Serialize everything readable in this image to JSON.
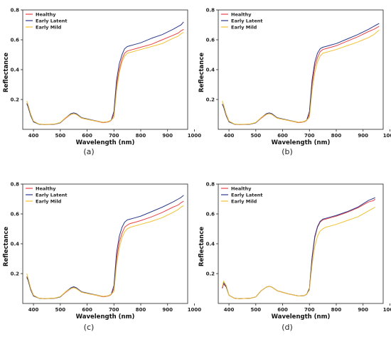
{
  "chart_data": [
    {
      "type": "line",
      "caption": "(a)",
      "xlabel": "Wavelength (nm)",
      "ylabel": "Reflectance",
      "xlim": [
        360,
        975
      ],
      "ylim": [
        0,
        0.8
      ],
      "xticks": [
        400,
        500,
        600,
        700,
        800,
        900,
        1000
      ],
      "yticks": [
        0.2,
        0.4,
        0.6,
        0.8
      ],
      "ytick_labels": [
        "0.2",
        "0.4",
        "0.6",
        "0.8"
      ],
      "legend_position": "top-left",
      "series": [
        {
          "name": "Healthy",
          "color": "#e8434a",
          "x": [
            375,
            380,
            390,
            400,
            420,
            440,
            480,
            500,
            520,
            540,
            550,
            560,
            580,
            620,
            660,
            680,
            690,
            700,
            710,
            720,
            730,
            740,
            750,
            760,
            780,
            800,
            840,
            880,
            920,
            940,
            950,
            960
          ],
          "y": [
            0.165,
            0.16,
            0.1,
            0.055,
            0.035,
            0.032,
            0.035,
            0.044,
            0.075,
            0.1,
            0.105,
            0.1,
            0.075,
            0.06,
            0.045,
            0.05,
            0.06,
            0.1,
            0.3,
            0.4,
            0.47,
            0.51,
            0.525,
            0.53,
            0.54,
            0.55,
            0.57,
            0.6,
            0.63,
            0.645,
            0.66,
            0.67
          ]
        },
        {
          "name": "Early Latent",
          "color": "#2b3a8c",
          "x": [
            375,
            380,
            390,
            400,
            420,
            440,
            480,
            500,
            520,
            540,
            550,
            560,
            580,
            620,
            660,
            680,
            690,
            700,
            710,
            720,
            730,
            740,
            750,
            760,
            780,
            800,
            840,
            880,
            920,
            940,
            950,
            960
          ],
          "y": [
            0.175,
            0.15,
            0.09,
            0.05,
            0.035,
            0.032,
            0.035,
            0.044,
            0.078,
            0.105,
            0.11,
            0.105,
            0.078,
            0.062,
            0.047,
            0.052,
            0.062,
            0.12,
            0.33,
            0.44,
            0.5,
            0.54,
            0.555,
            0.56,
            0.57,
            0.58,
            0.61,
            0.635,
            0.67,
            0.69,
            0.7,
            0.72
          ]
        },
        {
          "name": "Early Mild",
          "color": "#f2c12e",
          "x": [
            375,
            380,
            390,
            400,
            420,
            440,
            480,
            500,
            520,
            540,
            550,
            560,
            580,
            620,
            660,
            680,
            690,
            700,
            710,
            720,
            730,
            740,
            750,
            760,
            780,
            800,
            840,
            880,
            920,
            940,
            950,
            960
          ],
          "y": [
            0.19,
            0.165,
            0.1,
            0.055,
            0.036,
            0.033,
            0.036,
            0.046,
            0.078,
            0.1,
            0.105,
            0.1,
            0.075,
            0.06,
            0.047,
            0.052,
            0.062,
            0.08,
            0.26,
            0.38,
            0.45,
            0.49,
            0.51,
            0.515,
            0.525,
            0.535,
            0.555,
            0.575,
            0.61,
            0.625,
            0.64,
            0.65
          ]
        }
      ]
    },
    {
      "type": "line",
      "caption": "(b)",
      "xlabel": "Wavelength (nm)",
      "ylabel": "Reflectance",
      "xlim": [
        360,
        975
      ],
      "ylim": [
        0,
        0.8
      ],
      "xticks": [
        400,
        500,
        600,
        700,
        800,
        900,
        1000
      ],
      "yticks": [
        0.2,
        0.4,
        0.6,
        0.8
      ],
      "ytick_labels": [
        "0.2",
        "0.4",
        "0.6",
        "0.8"
      ],
      "legend_position": "top-left",
      "series": [
        {
          "name": "Healthy",
          "color": "#e8434a",
          "x": [
            375,
            380,
            390,
            400,
            420,
            440,
            480,
            500,
            520,
            540,
            550,
            560,
            580,
            620,
            660,
            680,
            690,
            700,
            710,
            720,
            730,
            740,
            750,
            760,
            780,
            800,
            840,
            880,
            920,
            940,
            950,
            960
          ],
          "y": [
            0.165,
            0.155,
            0.1,
            0.055,
            0.035,
            0.032,
            0.035,
            0.044,
            0.075,
            0.1,
            0.105,
            0.1,
            0.075,
            0.06,
            0.045,
            0.05,
            0.06,
            0.1,
            0.3,
            0.42,
            0.48,
            0.52,
            0.535,
            0.54,
            0.55,
            0.56,
            0.59,
            0.62,
            0.655,
            0.67,
            0.68,
            0.69
          ]
        },
        {
          "name": "Early Latent",
          "color": "#2b3a8c",
          "x": [
            375,
            380,
            390,
            400,
            420,
            440,
            480,
            500,
            520,
            540,
            550,
            560,
            580,
            620,
            660,
            680,
            690,
            700,
            710,
            720,
            730,
            740,
            750,
            760,
            780,
            800,
            840,
            880,
            920,
            940,
            950,
            960
          ],
          "y": [
            0.17,
            0.15,
            0.09,
            0.05,
            0.035,
            0.032,
            0.035,
            0.044,
            0.078,
            0.105,
            0.11,
            0.105,
            0.078,
            0.062,
            0.047,
            0.052,
            0.062,
            0.12,
            0.33,
            0.45,
            0.51,
            0.54,
            0.55,
            0.555,
            0.565,
            0.575,
            0.605,
            0.635,
            0.67,
            0.69,
            0.7,
            0.71
          ]
        },
        {
          "name": "Early Mild",
          "color": "#f2c12e",
          "x": [
            375,
            380,
            390,
            400,
            420,
            440,
            480,
            500,
            520,
            540,
            550,
            560,
            580,
            620,
            660,
            680,
            690,
            700,
            710,
            720,
            730,
            740,
            750,
            760,
            780,
            800,
            840,
            880,
            920,
            940,
            950,
            960
          ],
          "y": [
            0.19,
            0.165,
            0.1,
            0.055,
            0.036,
            0.033,
            0.036,
            0.046,
            0.078,
            0.1,
            0.105,
            0.1,
            0.075,
            0.06,
            0.047,
            0.052,
            0.062,
            0.08,
            0.26,
            0.38,
            0.45,
            0.49,
            0.51,
            0.515,
            0.525,
            0.535,
            0.56,
            0.585,
            0.615,
            0.635,
            0.65,
            0.665
          ]
        }
      ]
    },
    {
      "type": "line",
      "caption": "(c)",
      "xlabel": "Wavelength (nm)",
      "ylabel": "Reflectance",
      "xlim": [
        360,
        975
      ],
      "ylim": [
        0,
        0.8
      ],
      "xticks": [
        400,
        500,
        600,
        700,
        800,
        900,
        1000
      ],
      "yticks": [
        0.2,
        0.4,
        0.6,
        0.8
      ],
      "ytick_labels": [
        "0.2",
        "0.4",
        "0.6",
        "0.8"
      ],
      "legend_position": "top-left",
      "series": [
        {
          "name": "Healthy",
          "color": "#e8434a",
          "x": [
            375,
            380,
            390,
            400,
            420,
            440,
            480,
            500,
            520,
            540,
            550,
            560,
            580,
            620,
            660,
            680,
            690,
            700,
            710,
            720,
            730,
            740,
            750,
            760,
            780,
            800,
            840,
            880,
            920,
            940,
            950,
            960
          ],
          "y": [
            0.17,
            0.16,
            0.1,
            0.055,
            0.035,
            0.032,
            0.035,
            0.044,
            0.075,
            0.1,
            0.108,
            0.1,
            0.075,
            0.06,
            0.045,
            0.05,
            0.06,
            0.1,
            0.3,
            0.41,
            0.47,
            0.51,
            0.525,
            0.535,
            0.545,
            0.555,
            0.58,
            0.61,
            0.645,
            0.66,
            0.675,
            0.685
          ]
        },
        {
          "name": "Early Latent",
          "color": "#2b3a8c",
          "x": [
            375,
            380,
            390,
            400,
            420,
            440,
            480,
            500,
            520,
            540,
            550,
            560,
            580,
            620,
            660,
            680,
            690,
            700,
            710,
            720,
            730,
            740,
            750,
            760,
            780,
            800,
            840,
            880,
            920,
            940,
            950,
            960
          ],
          "y": [
            0.18,
            0.155,
            0.09,
            0.05,
            0.035,
            0.032,
            0.035,
            0.044,
            0.078,
            0.105,
            0.112,
            0.105,
            0.078,
            0.062,
            0.047,
            0.052,
            0.062,
            0.12,
            0.34,
            0.45,
            0.51,
            0.545,
            0.56,
            0.565,
            0.575,
            0.585,
            0.615,
            0.645,
            0.68,
            0.7,
            0.71,
            0.725
          ]
        },
        {
          "name": "Early Mild",
          "color": "#f2c12e",
          "x": [
            375,
            380,
            390,
            400,
            420,
            440,
            480,
            500,
            520,
            540,
            550,
            560,
            580,
            620,
            660,
            680,
            690,
            700,
            710,
            720,
            730,
            740,
            750,
            760,
            780,
            800,
            840,
            880,
            920,
            940,
            950,
            960
          ],
          "y": [
            0.2,
            0.17,
            0.1,
            0.055,
            0.036,
            0.033,
            0.036,
            0.046,
            0.078,
            0.1,
            0.105,
            0.1,
            0.075,
            0.06,
            0.047,
            0.052,
            0.062,
            0.08,
            0.26,
            0.37,
            0.44,
            0.48,
            0.5,
            0.51,
            0.52,
            0.53,
            0.55,
            0.575,
            0.61,
            0.63,
            0.645,
            0.655
          ]
        }
      ]
    },
    {
      "type": "line",
      "caption": "(d)",
      "xlabel": "Wavelength (nm)",
      "ylabel": "Reflectance",
      "xlim": [
        360,
        975
      ],
      "ylim": [
        0,
        0.8
      ],
      "xticks": [
        400,
        500,
        600,
        700,
        800,
        900,
        1000
      ],
      "yticks": [
        0.2,
        0.4,
        0.6,
        0.8
      ],
      "ytick_labels": [
        "0.2",
        "0.4",
        "0.6",
        "0.8"
      ],
      "legend_position": "top-left",
      "series": [
        {
          "name": "Healthy",
          "color": "#e8434a",
          "x": [
            375,
            380,
            390,
            400,
            420,
            440,
            480,
            500,
            520,
            540,
            550,
            560,
            580,
            620,
            660,
            680,
            690,
            700,
            710,
            720,
            730,
            740,
            750,
            760,
            780,
            800,
            840,
            880,
            920,
            940,
            945
          ],
          "y": [
            0.1,
            0.13,
            0.11,
            0.055,
            0.035,
            0.032,
            0.035,
            0.044,
            0.085,
            0.11,
            0.115,
            0.11,
            0.085,
            0.065,
            0.05,
            0.052,
            0.062,
            0.1,
            0.3,
            0.44,
            0.51,
            0.545,
            0.56,
            0.565,
            0.575,
            0.585,
            0.61,
            0.64,
            0.68,
            0.69,
            0.7
          ]
        },
        {
          "name": "Early Latent",
          "color": "#2b3a8c",
          "x": [
            375,
            380,
            390,
            400,
            420,
            440,
            480,
            500,
            520,
            540,
            550,
            560,
            580,
            620,
            660,
            680,
            690,
            700,
            710,
            720,
            730,
            740,
            750,
            760,
            780,
            800,
            840,
            880,
            920,
            940,
            945
          ],
          "y": [
            0.105,
            0.14,
            0.11,
            0.055,
            0.035,
            0.032,
            0.035,
            0.044,
            0.085,
            0.11,
            0.115,
            0.11,
            0.085,
            0.065,
            0.05,
            0.052,
            0.062,
            0.1,
            0.31,
            0.45,
            0.515,
            0.55,
            0.565,
            0.57,
            0.58,
            0.59,
            0.615,
            0.645,
            0.69,
            0.705,
            0.71
          ]
        },
        {
          "name": "Early Mild",
          "color": "#f2c12e",
          "x": [
            375,
            380,
            390,
            400,
            420,
            440,
            480,
            500,
            520,
            540,
            550,
            560,
            580,
            620,
            660,
            680,
            690,
            700,
            710,
            720,
            730,
            740,
            750,
            760,
            780,
            800,
            840,
            880,
            920,
            940,
            945
          ],
          "y": [
            0.11,
            0.15,
            0.12,
            0.055,
            0.035,
            0.032,
            0.035,
            0.044,
            0.085,
            0.11,
            0.115,
            0.11,
            0.085,
            0.065,
            0.05,
            0.052,
            0.062,
            0.09,
            0.26,
            0.38,
            0.45,
            0.485,
            0.5,
            0.51,
            0.52,
            0.53,
            0.555,
            0.58,
            0.62,
            0.64,
            0.645
          ]
        }
      ]
    }
  ]
}
